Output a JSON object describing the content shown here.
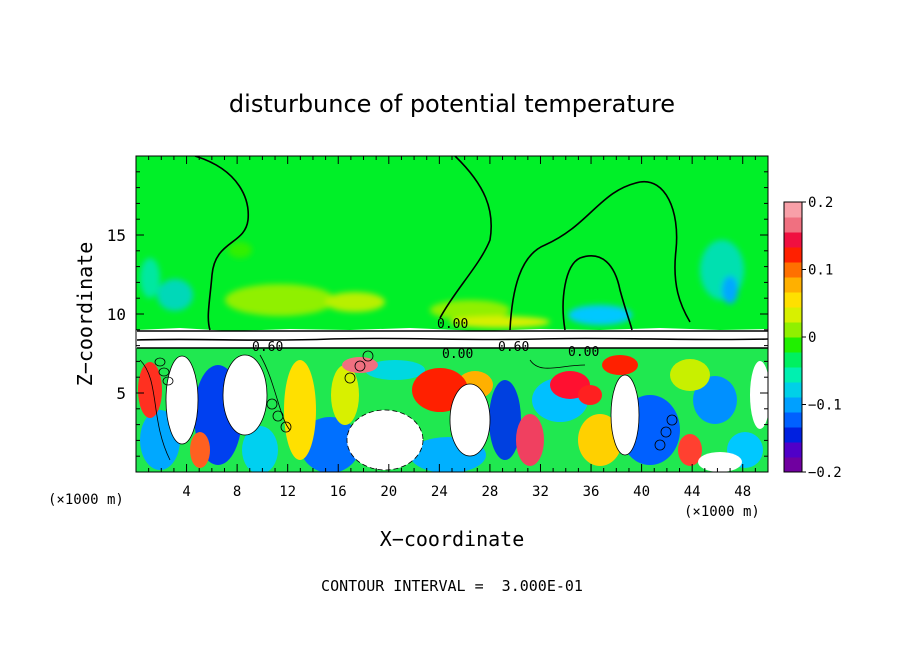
{
  "chart_data": {
    "type": "heatmap",
    "title": "disturbunce of potential temperature",
    "xlabel": "X−coordinate",
    "ylabel": "Z−coordinate",
    "x_unit": "(×1000 m)",
    "x_unit_right": "(×1000 m)",
    "xlim": [
      0,
      50
    ],
    "ylim": [
      0,
      20
    ],
    "x_ticks": [
      4,
      8,
      12,
      16,
      20,
      24,
      28,
      32,
      36,
      40,
      44,
      48
    ],
    "x_tick_labels": [
      "4",
      "8",
      "12",
      "16",
      "20",
      "24",
      "28",
      "32",
      "36",
      "40",
      "44",
      "48"
    ],
    "y_ticks": [
      5,
      10,
      15
    ],
    "y_tick_labels": [
      "5",
      "10",
      "15"
    ],
    "colorbar": {
      "min": -0.2,
      "max": 0.2,
      "ticks": [
        0.2,
        0.1,
        0,
        -0.1,
        -0.2
      ],
      "tick_labels": [
        "0.2",
        "0.1",
        "0",
        "−0.1",
        "−0.2"
      ],
      "colors": [
        "#7000a0",
        "#5000c8",
        "#0020e0",
        "#0060ff",
        "#00a0ff",
        "#00d0e8",
        "#00f0b0",
        "#00f060",
        "#20f000",
        "#90f000",
        "#d8f000",
        "#ffe000",
        "#ffb000",
        "#ff7000",
        "#ff2000",
        "#f01040",
        "#f07080",
        "#f8a0a8"
      ]
    },
    "contour_labels": [
      "0.00",
      "0.60",
      "0.00",
      "0.60",
      "0.00"
    ],
    "contour_interval_text": "CONTOUR INTERVAL =  3.000E-01"
  }
}
